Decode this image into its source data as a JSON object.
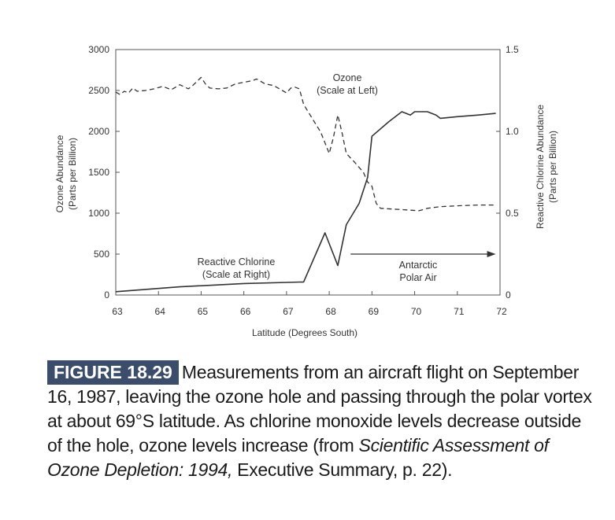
{
  "chart_data": {
    "type": "line",
    "xlabel": "Latitude (Degrees South)",
    "x_ticks": [
      "63",
      "64",
      "65",
      "66",
      "67",
      "68",
      "69",
      "70",
      "71",
      "72"
    ],
    "xlim": [
      63,
      72
    ],
    "left_axis": {
      "label_line1": "Ozone Abundance",
      "label_line2": "(Parts per Billion)",
      "ylim": [
        0,
        3000
      ],
      "ticks": [
        "0",
        "500",
        "1000",
        "1500",
        "2000",
        "2500",
        "3000"
      ]
    },
    "right_axis": {
      "label_line1": "Reactive Chlorine Abundance",
      "label_line2": "(Parts per Billion)",
      "ylim": [
        0,
        1.5
      ],
      "ticks": [
        "0",
        "0.5",
        "1.0",
        "1.5"
      ]
    },
    "series": [
      {
        "name": "Ozone",
        "axis": "left",
        "style": "dashed",
        "label_line1": "Ozone",
        "label_line2": "(Scale at Left)",
        "points": [
          [
            63.0,
            2480
          ],
          [
            63.1,
            2450
          ],
          [
            63.2,
            2490
          ],
          [
            63.3,
            2470
          ],
          [
            63.4,
            2530
          ],
          [
            63.5,
            2490
          ],
          [
            63.7,
            2500
          ],
          [
            63.9,
            2520
          ],
          [
            64.1,
            2550
          ],
          [
            64.3,
            2510
          ],
          [
            64.5,
            2570
          ],
          [
            64.7,
            2520
          ],
          [
            64.8,
            2560
          ],
          [
            64.9,
            2610
          ],
          [
            65.0,
            2660
          ],
          [
            65.1,
            2580
          ],
          [
            65.2,
            2530
          ],
          [
            65.4,
            2520
          ],
          [
            65.6,
            2530
          ],
          [
            65.8,
            2580
          ],
          [
            66.0,
            2600
          ],
          [
            66.2,
            2620
          ],
          [
            66.3,
            2640
          ],
          [
            66.5,
            2580
          ],
          [
            66.7,
            2560
          ],
          [
            66.9,
            2500
          ],
          [
            67.0,
            2470
          ],
          [
            67.1,
            2530
          ],
          [
            67.2,
            2540
          ],
          [
            67.3,
            2520
          ],
          [
            67.4,
            2330
          ],
          [
            67.6,
            2160
          ],
          [
            67.8,
            1990
          ],
          [
            68.0,
            1730
          ],
          [
            68.1,
            1930
          ],
          [
            68.2,
            2200
          ],
          [
            68.3,
            1980
          ],
          [
            68.4,
            1730
          ],
          [
            68.6,
            1620
          ],
          [
            68.8,
            1500
          ],
          [
            68.9,
            1380
          ],
          [
            69.0,
            1330
          ],
          [
            69.1,
            1120
          ],
          [
            69.2,
            1060
          ],
          [
            69.5,
            1050
          ],
          [
            69.8,
            1040
          ],
          [
            70.1,
            1030
          ],
          [
            70.3,
            1060
          ],
          [
            70.6,
            1080
          ],
          [
            71.0,
            1090
          ],
          [
            71.5,
            1100
          ],
          [
            71.9,
            1100
          ]
        ]
      },
      {
        "name": "Reactive Chlorine",
        "axis": "right",
        "style": "solid",
        "label_line1": "Reactive Chlorine",
        "label_line2": "(Scale at Right)",
        "points": [
          [
            63.0,
            0.02
          ],
          [
            64.5,
            0.05
          ],
          [
            66.0,
            0.07
          ],
          [
            67.4,
            0.08
          ],
          [
            67.9,
            0.38
          ],
          [
            68.2,
            0.18
          ],
          [
            68.4,
            0.43
          ],
          [
            68.7,
            0.56
          ],
          [
            68.9,
            0.72
          ],
          [
            69.0,
            0.97
          ],
          [
            69.4,
            1.06
          ],
          [
            69.7,
            1.12
          ],
          [
            69.9,
            1.1
          ],
          [
            70.0,
            1.12
          ],
          [
            70.3,
            1.12
          ],
          [
            70.5,
            1.1
          ],
          [
            70.6,
            1.08
          ],
          [
            71.0,
            1.09
          ],
          [
            71.5,
            1.1
          ],
          [
            71.9,
            1.11
          ]
        ]
      }
    ],
    "annotation": {
      "line1": "Antarctic",
      "line2": "Polar Air",
      "arrow_from_x": 68.5,
      "arrow_to_x": 71.9,
      "arrow_y_right": 0.25
    }
  },
  "caption": {
    "label": "FIGURE 18.29",
    "text_part1": "Measurements from an aircraft flight on September 16, 1987, leaving the ozone hole and passing through the polar vortex at about 69°S latitude. As chlorine monoxide levels decrease outside of the hole, ozone levels increase (from ",
    "source_title": "Scientific Assessment of Ozone Depletion: 1994,",
    "text_part2": " Executive Summary, p. 22)."
  }
}
